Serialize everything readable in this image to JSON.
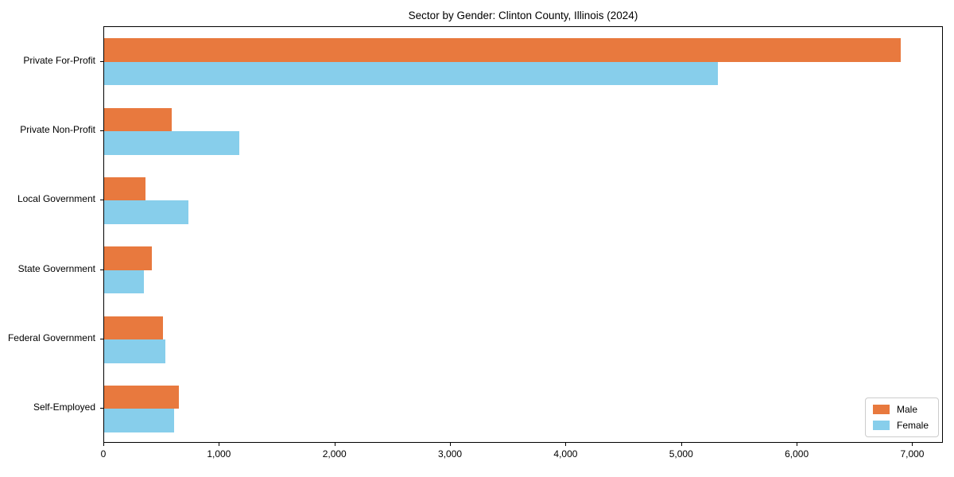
{
  "title": "Sector by Gender: Clinton County, Illinois (2024)",
  "colors": {
    "male": "#E8793E",
    "female": "#87CEEB",
    "axis": "#000000",
    "legend_border": "#CCCCCC",
    "background": "#FFFFFF"
  },
  "legend": {
    "position": "lower right",
    "entries": [
      "Male",
      "Female"
    ]
  },
  "chart_data": {
    "type": "bar",
    "orientation": "horizontal",
    "title": "Sector by Gender: Clinton County, Illinois (2024)",
    "xlabel": "",
    "ylabel": "",
    "categories": [
      "Private For-Profit",
      "Private Non-Profit",
      "Local Government",
      "State Government",
      "Federal Government",
      "Self-Employed"
    ],
    "series": [
      {
        "name": "Male",
        "color": "#E8793E",
        "values": [
          6910,
          585,
          360,
          415,
          510,
          645
        ]
      },
      {
        "name": "Female",
        "color": "#87CEEB",
        "values": [
          5320,
          1170,
          730,
          345,
          530,
          605
        ]
      }
    ],
    "xlim": [
      0,
      7265
    ],
    "xticks": [
      0,
      1000,
      2000,
      3000,
      4000,
      5000,
      6000,
      7000
    ],
    "xtick_labels": [
      "0",
      "1,000",
      "2,000",
      "3,000",
      "4,000",
      "5,000",
      "6,000",
      "7,000"
    ],
    "grid": false,
    "legend_position": "lower right"
  }
}
